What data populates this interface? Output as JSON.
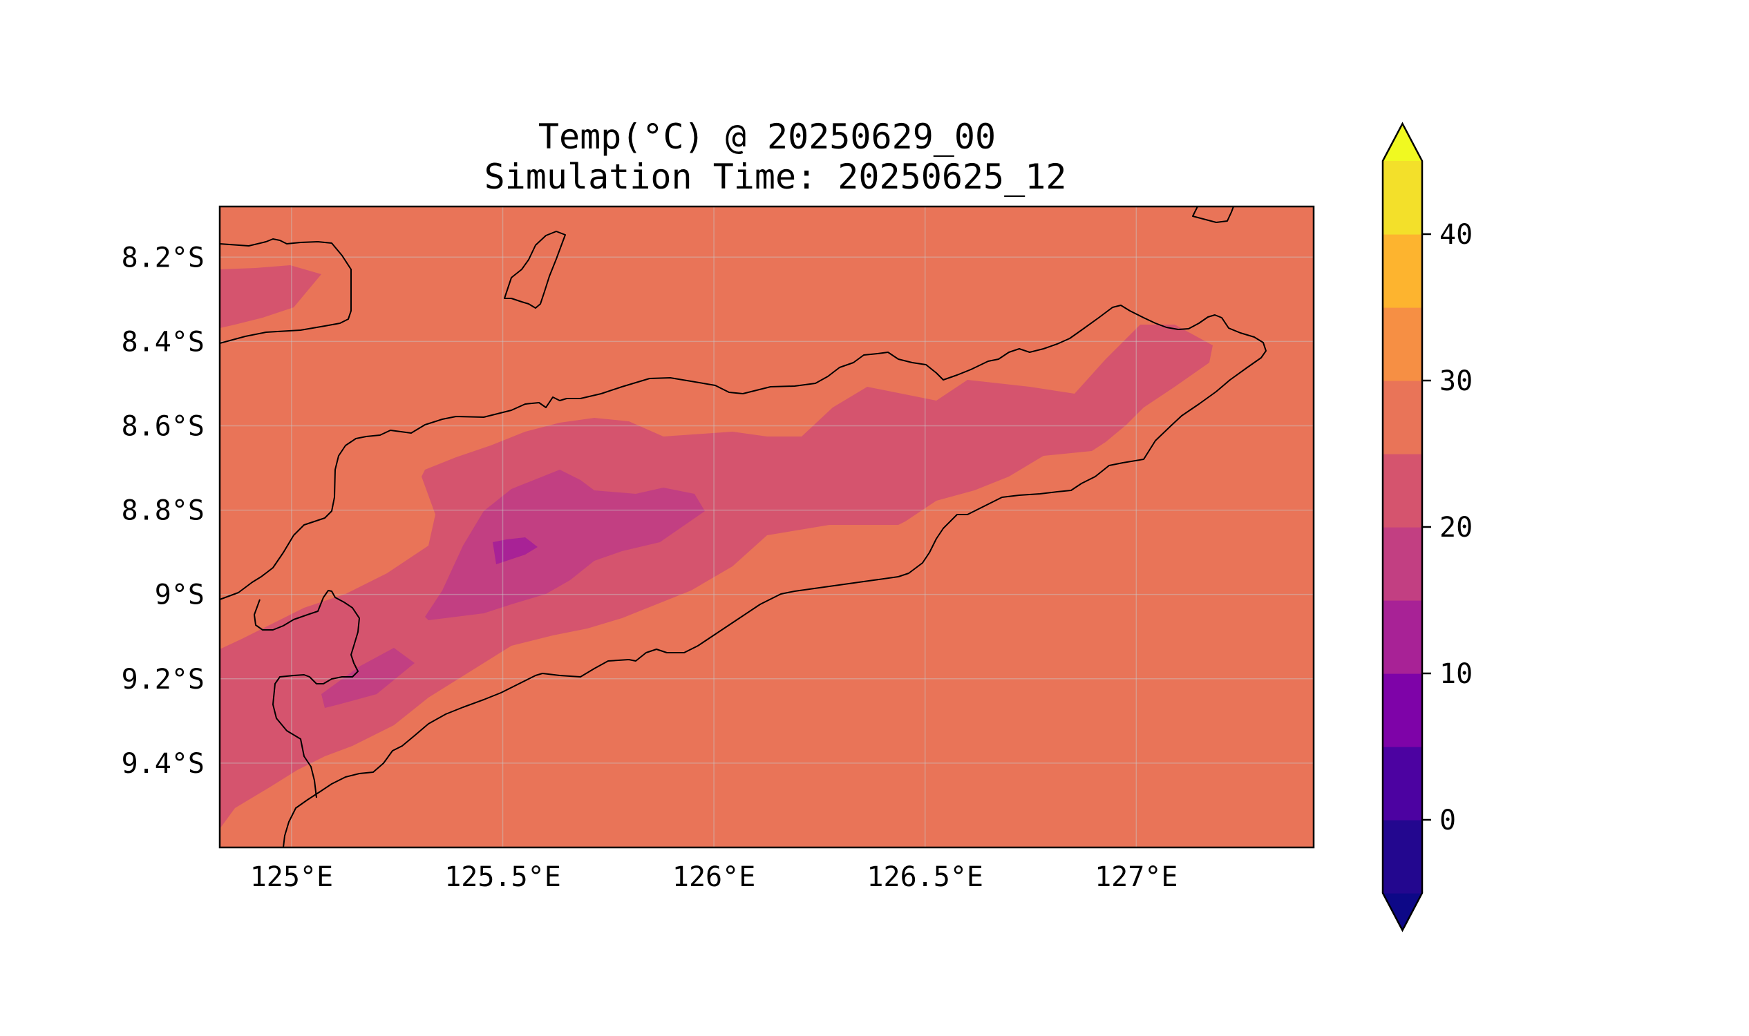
{
  "title_line1": "Temp(°C) @ 20250629_00",
  "title_line2": "Simulation Time: 20250625_12",
  "map": {
    "lon_range": [
      124.83,
      127.42
    ],
    "lat_range": [
      -9.6,
      -8.08
    ],
    "x_ticks": [
      {
        "value": 125.0,
        "label": "125°E"
      },
      {
        "value": 125.5,
        "label": "125.5°E"
      },
      {
        "value": 126.0,
        "label": "126°E"
      },
      {
        "value": 126.5,
        "label": "126.5°E"
      },
      {
        "value": 127.0,
        "label": "127°E"
      }
    ],
    "y_ticks": [
      {
        "value": -8.2,
        "label": "8.2°S"
      },
      {
        "value": -8.4,
        "label": "8.4°S"
      },
      {
        "value": -8.6,
        "label": "8.6°S"
      },
      {
        "value": -8.8,
        "label": "8.8°S"
      },
      {
        "value": -9.0,
        "label": "9°S"
      },
      {
        "value": -9.2,
        "label": "9.2°S"
      },
      {
        "value": -9.4,
        "label": "9.4°S"
      }
    ],
    "gridlines": true,
    "background_level_color": "#e97458"
  },
  "colorbar": {
    "colormap": "plasma",
    "levels": [
      -5,
      0,
      5,
      10,
      15,
      20,
      25,
      30,
      35,
      40,
      45
    ],
    "colors": [
      "#23078f",
      "#4c02a1",
      "#7e03a8",
      "#a82296",
      "#c23f82",
      "#d5546e",
      "#e97458",
      "#f68f44",
      "#fdb42f",
      "#f3e02a"
    ],
    "extend_under_color": "#0d0887",
    "extend_over_color": "#f0f921",
    "ticks": [
      {
        "value": 0,
        "label": "0"
      },
      {
        "value": 10,
        "label": "10"
      },
      {
        "value": 20,
        "label": "20"
      },
      {
        "value": 30,
        "label": "30"
      },
      {
        "value": 40,
        "label": "40"
      }
    ]
  }
}
